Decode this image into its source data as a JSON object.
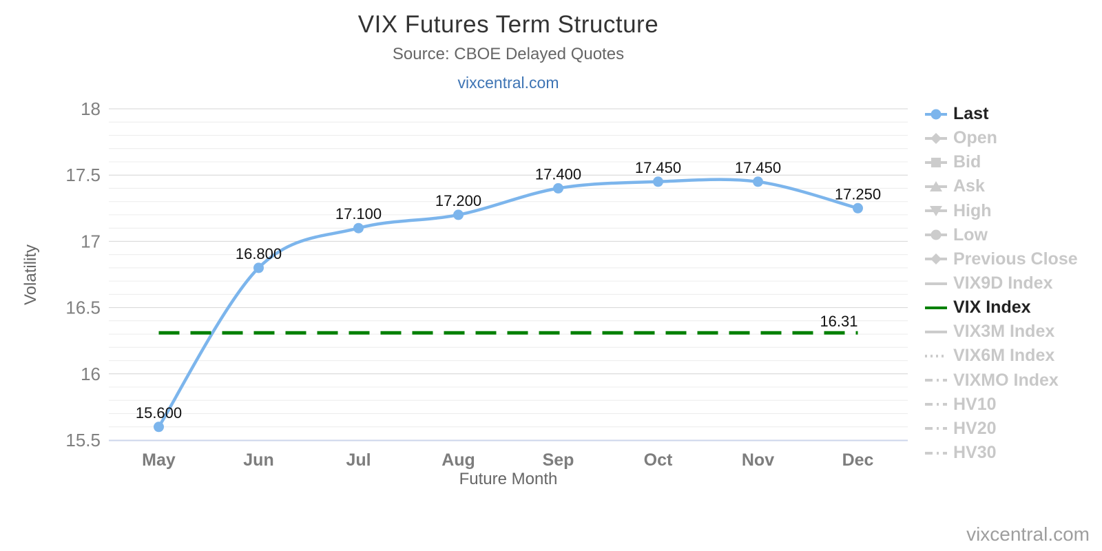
{
  "header": {
    "title": "VIX Futures Term Structure",
    "subtitle": "Source: CBOE Delayed Quotes",
    "link": "vixcentral.com"
  },
  "watermark": "vixcentral.com",
  "chart_data": {
    "type": "line",
    "title": "VIX Futures Term Structure",
    "subtitle": "Source: CBOE Delayed Quotes",
    "categories": [
      "May",
      "Jun",
      "Jul",
      "Aug",
      "Sep",
      "Oct",
      "Nov",
      "Dec"
    ],
    "series": [
      {
        "name": "Last",
        "type": "spline",
        "values": [
          15.6,
          16.8,
          17.1,
          17.2,
          17.4,
          17.45,
          17.45,
          17.25
        ],
        "data_labels": [
          "15.600",
          "16.800",
          "17.100",
          "17.200",
          "17.400",
          "17.450",
          "17.450",
          "17.250"
        ],
        "color": "#7cb5ec",
        "marker": "circle"
      },
      {
        "name": "VIX Index",
        "type": "horizontal-line",
        "value": 16.31,
        "label": "16.31",
        "color": "#008000",
        "style": "dashed"
      }
    ],
    "xlabel": "Future Month",
    "ylabel": "Volatility",
    "ylim": [
      15.5,
      18
    ],
    "yticks": [
      15.5,
      16,
      16.5,
      17,
      17.5,
      18
    ],
    "ytick_labels": [
      "15.5",
      "16",
      "16.5",
      "17",
      "17.5",
      "18"
    ],
    "minor_gridline_step": 0.1,
    "grid": true,
    "legend_position": "right"
  },
  "legend": {
    "items": [
      {
        "label": "Last",
        "shape": "line-circle",
        "color": "#7cb5ec",
        "active": true
      },
      {
        "label": "Open",
        "shape": "line-diamond",
        "color": "#cccccc",
        "active": false
      },
      {
        "label": "Bid",
        "shape": "line-square",
        "color": "#cccccc",
        "active": false
      },
      {
        "label": "Ask",
        "shape": "line-triangle-up",
        "color": "#cccccc",
        "active": false
      },
      {
        "label": "High",
        "shape": "line-triangle-down",
        "color": "#cccccc",
        "active": false
      },
      {
        "label": "Low",
        "shape": "line-circle",
        "color": "#cccccc",
        "active": false
      },
      {
        "label": "Previous Close",
        "shape": "line-diamond",
        "color": "#cccccc",
        "active": false
      },
      {
        "label": "VIX9D Index",
        "shape": "line",
        "color": "#cccccc",
        "active": false
      },
      {
        "label": "VIX Index",
        "shape": "line",
        "color": "#008000",
        "active": true
      },
      {
        "label": "VIX3M Index",
        "shape": "line",
        "color": "#cccccc",
        "active": false
      },
      {
        "label": "VIX6M Index",
        "shape": "dotted-line",
        "color": "#cccccc",
        "active": false
      },
      {
        "label": "VIXMO Index",
        "shape": "dashdot-line",
        "color": "#cccccc",
        "active": false
      },
      {
        "label": "HV10",
        "shape": "dashdot-line",
        "color": "#cccccc",
        "active": false
      },
      {
        "label": "HV20",
        "shape": "dashdot-line",
        "color": "#cccccc",
        "active": false
      },
      {
        "label": "HV30",
        "shape": "dashdot-line",
        "color": "#cccccc",
        "active": false
      }
    ]
  },
  "colors": {
    "series_blue": "#7cb5ec",
    "vix_green": "#008000",
    "grid_major": "#d4d4d4",
    "grid_minor": "#ececec",
    "axis_line": "#ccd6eb",
    "link_blue": "#3e74b4",
    "legend_disabled": "#cccccc"
  }
}
